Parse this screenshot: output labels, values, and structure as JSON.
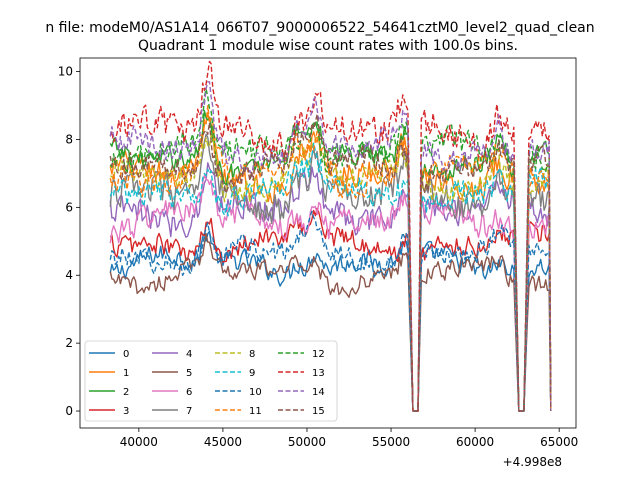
{
  "chart_data": {
    "type": "line",
    "suptitle": "n file: modeM0/AS1A14_066T07_9000006522_54641cztM0_level2_quad_clean",
    "title": "Quadrant 1 module wise count rates with 100.0s bins.",
    "xlabel": "",
    "ylabel": "",
    "x_offset_label": "+4.998e8",
    "x_range": [
      38300,
      64500
    ],
    "x_step": 100,
    "xlim": [
      36500,
      66000
    ],
    "ylim": [
      -0.5,
      10.4
    ],
    "x_ticks": [
      40000,
      45000,
      50000,
      55000,
      60000,
      65000
    ],
    "x_tick_labels": [
      "40000",
      "45000",
      "50000",
      "55000",
      "60000",
      "65000"
    ],
    "y_ticks": [
      0,
      2,
      4,
      6,
      8,
      10
    ],
    "y_tick_labels": [
      "0",
      "2",
      "4",
      "6",
      "8",
      "10"
    ],
    "grid": false,
    "legend_position": "lower-left",
    "legend_columns": 4,
    "dropouts": [
      {
        "start": 56000,
        "end": 56800,
        "low_start": 56300,
        "low_end": 56600
      },
      {
        "start": 62300,
        "end": 63200,
        "low_start": 62600,
        "low_end": 62900
      },
      {
        "start": 64400,
        "end": 64500,
        "low_start": 64500,
        "low_end": 64500
      }
    ],
    "peaks": [
      {
        "x": 44100,
        "amplitude": 1.7
      },
      {
        "x": 49500,
        "amplitude": 0.9
      },
      {
        "x": 50500,
        "amplitude": 1.3
      },
      {
        "x": 55800,
        "amplitude": 0.9
      },
      {
        "x": 61400,
        "amplitude": 0.7
      }
    ],
    "series": [
      {
        "name": "0",
        "level": 4.3,
        "noise": 0.28,
        "color": "#1f77b4",
        "dashed": false
      },
      {
        "name": "1",
        "level": 6.9,
        "noise": 0.35,
        "color": "#ff7f0e",
        "dashed": false
      },
      {
        "name": "2",
        "level": 7.4,
        "noise": 0.3,
        "color": "#2ca02c",
        "dashed": false
      },
      {
        "name": "3",
        "level": 4.9,
        "noise": 0.3,
        "color": "#d62728",
        "dashed": false
      },
      {
        "name": "4",
        "level": 5.9,
        "noise": 0.4,
        "color": "#9467bd",
        "dashed": false
      },
      {
        "name": "5",
        "level": 4.0,
        "noise": 0.25,
        "color": "#8c564b",
        "dashed": false
      },
      {
        "name": "6",
        "level": 5.6,
        "noise": 0.35,
        "color": "#e377c2",
        "dashed": false
      },
      {
        "name": "7",
        "level": 6.3,
        "noise": 0.4,
        "color": "#7f7f7f",
        "dashed": false
      },
      {
        "name": "8",
        "level": 6.8,
        "noise": 0.35,
        "color": "#bcbd22",
        "dashed": true
      },
      {
        "name": "9",
        "level": 6.4,
        "noise": 0.35,
        "color": "#17becf",
        "dashed": true
      },
      {
        "name": "10",
        "level": 4.6,
        "noise": 0.3,
        "color": "#1f77b4",
        "dashed": true
      },
      {
        "name": "11",
        "level": 7.0,
        "noise": 0.35,
        "color": "#ff7f0e",
        "dashed": true
      },
      {
        "name": "12",
        "level": 7.6,
        "noise": 0.35,
        "color": "#2ca02c",
        "dashed": true
      },
      {
        "name": "13",
        "level": 8.2,
        "noise": 0.4,
        "color": "#d62728",
        "dashed": true
      },
      {
        "name": "14",
        "level": 7.7,
        "noise": 0.35,
        "color": "#9467bd",
        "dashed": true
      },
      {
        "name": "15",
        "level": 7.2,
        "noise": 0.35,
        "color": "#8c564b",
        "dashed": true
      }
    ]
  }
}
